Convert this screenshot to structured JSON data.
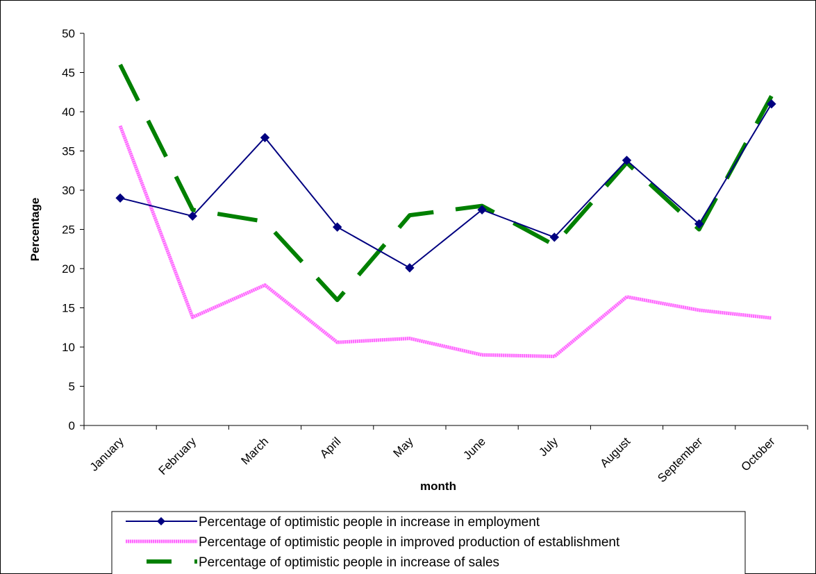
{
  "chart_data": {
    "type": "line",
    "title": "",
    "xlabel": "month",
    "ylabel": "Percentage",
    "categories": [
      "January",
      "February",
      "March",
      "April",
      "May",
      "June",
      "July",
      "August",
      "September",
      "October"
    ],
    "ylim": [
      0,
      50
    ],
    "yticks": [
      "0",
      "5",
      "10",
      "15",
      "20",
      "25",
      "30",
      "35",
      "40",
      "45",
      "50"
    ],
    "grid": false,
    "legend_position": "bottom",
    "series": [
      {
        "name": "Percentage of optimistic people in increase in employment",
        "values": [
          29.0,
          26.7,
          36.7,
          25.3,
          20.1,
          27.5,
          24.0,
          33.8,
          25.7,
          41.0
        ],
        "color": "#000080",
        "style": "solid-diamond"
      },
      {
        "name": "Percentage of optimistic people in improved production of establishment",
        "values": [
          38.2,
          13.8,
          17.9,
          10.6,
          11.1,
          9.0,
          8.8,
          16.4,
          14.7,
          13.7
        ],
        "color": "#ff66ff",
        "style": "dotted-thick"
      },
      {
        "name": "Percentage of optimistic people in increase of sales",
        "values": [
          46.0,
          27.5,
          26.0,
          16.0,
          26.8,
          28.0,
          23.0,
          33.5,
          25.0,
          42.0
        ],
        "color": "#008000",
        "style": "long-dash"
      }
    ]
  }
}
